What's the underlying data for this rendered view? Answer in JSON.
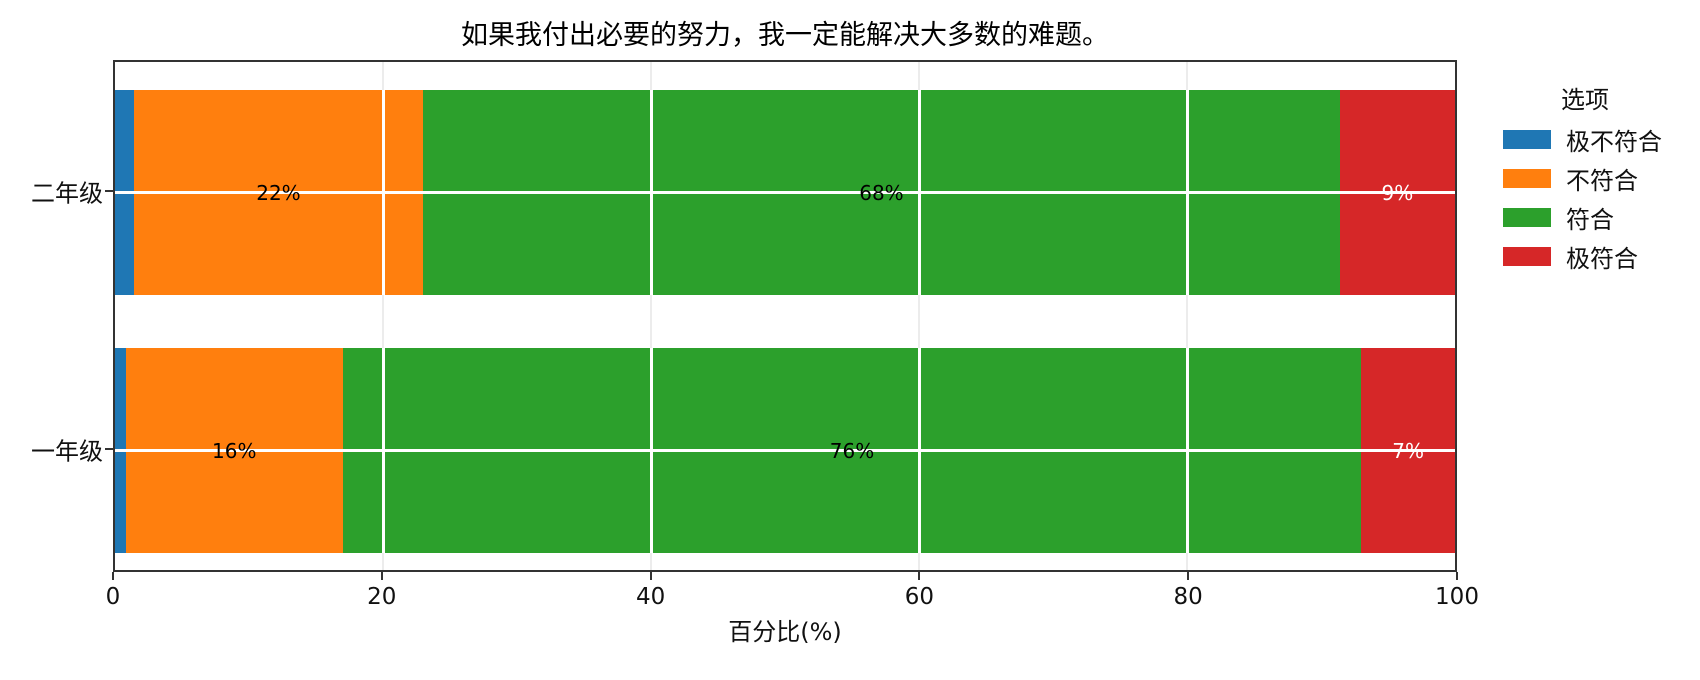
{
  "chart_data": {
    "type": "bar",
    "subtype": "horizontal-stacked",
    "title": "如果我付出必要的努力，我一定能解决大多数的难题。",
    "xlabel": "百分比(%)",
    "ylabel": "",
    "xlim": [
      0,
      100
    ],
    "xticks": [
      0,
      20,
      40,
      60,
      80,
      100
    ],
    "grid": "on",
    "categories": [
      "二年级",
      "一年级"
    ],
    "legend": {
      "title": "选项",
      "position": "right"
    },
    "series": [
      {
        "name": "极不符合",
        "color": "#1f77b4",
        "values": [
          1.4,
          0.8
        ],
        "labels": [
          "",
          ""
        ],
        "label_color": "#000000"
      },
      {
        "name": "不符合",
        "color": "#ff7f0e",
        "values": [
          21.6,
          16.2
        ],
        "labels": [
          "22%",
          "16%"
        ],
        "label_color": "#000000"
      },
      {
        "name": "符合",
        "color": "#2ca02c",
        "values": [
          68.4,
          76.0
        ],
        "labels": [
          "68%",
          "76%"
        ],
        "label_color": "#000000"
      },
      {
        "name": "极符合",
        "color": "#d62728",
        "values": [
          8.6,
          7.0
        ],
        "labels": [
          "9%",
          "7%"
        ],
        "label_color": "#ffffff"
      }
    ]
  }
}
